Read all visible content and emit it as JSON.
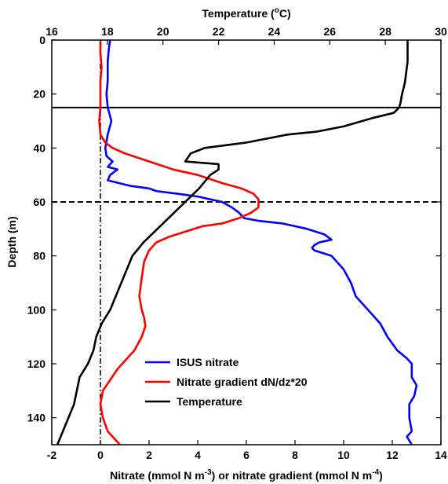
{
  "chart_data": {
    "type": "line",
    "title": "",
    "xlabel_bottom": {
      "pre": "Nitrate (mmol N m",
      "sup1": "-3",
      "mid": ") or nitrate gradient (mmol N m",
      "sup2": "-4",
      "post": ")"
    },
    "xlabel_top": {
      "pre": "Temperature (",
      "sup": "o",
      "post": "C)"
    },
    "ylabel": "Depth (m)",
    "bottom_axis": {
      "min": -2,
      "max": 14,
      "ticks": [
        -2,
        0,
        2,
        4,
        6,
        8,
        10,
        12,
        14
      ]
    },
    "top_axis": {
      "min": 16,
      "max": 30,
      "ticks": [
        16,
        18,
        20,
        22,
        24,
        26,
        28,
        30
      ]
    },
    "y_axis": {
      "min": 0,
      "max": 150,
      "inverted": true,
      "ticks": [
        0,
        20,
        40,
        60,
        80,
        100,
        120,
        140
      ]
    },
    "grid": false,
    "legend_position": "bottom-center",
    "reference_lines": [
      {
        "orientation": "horizontal",
        "depth": 25,
        "style": "solid",
        "color": "#000000"
      },
      {
        "orientation": "horizontal",
        "depth": 60,
        "style": "dashed",
        "color": "#000000"
      },
      {
        "orientation": "vertical",
        "x": 0,
        "style": "dashdot",
        "color": "#000000"
      }
    ],
    "series": [
      {
        "name": "ISUS nitrate",
        "axis": "bottom",
        "color": "#0000ff",
        "points": [
          [
            0.4,
            0
          ],
          [
            0.35,
            3
          ],
          [
            0.3,
            8
          ],
          [
            0.3,
            15
          ],
          [
            0.25,
            20
          ],
          [
            0.3,
            25
          ],
          [
            0.45,
            30
          ],
          [
            0.3,
            35
          ],
          [
            0.2,
            40
          ],
          [
            0.25,
            43
          ],
          [
            0.5,
            45
          ],
          [
            0.3,
            47
          ],
          [
            0.7,
            48
          ],
          [
            0.4,
            50
          ],
          [
            0.3,
            52
          ],
          [
            1.2,
            54
          ],
          [
            2.0,
            55
          ],
          [
            2.3,
            56
          ],
          [
            3.2,
            57
          ],
          [
            4.0,
            58
          ],
          [
            5.0,
            60
          ],
          [
            5.4,
            62
          ],
          [
            5.7,
            64
          ],
          [
            5.9,
            66
          ],
          [
            6.5,
            67
          ],
          [
            7.5,
            68
          ],
          [
            8.5,
            70
          ],
          [
            9.2,
            72
          ],
          [
            9.5,
            74
          ],
          [
            9.0,
            75
          ],
          [
            8.8,
            76
          ],
          [
            8.7,
            77
          ],
          [
            8.8,
            78
          ],
          [
            9.5,
            80
          ],
          [
            10.0,
            85
          ],
          [
            10.3,
            90
          ],
          [
            10.5,
            95
          ],
          [
            11.0,
            100
          ],
          [
            11.5,
            105
          ],
          [
            11.8,
            110
          ],
          [
            12.2,
            115
          ],
          [
            12.6,
            118
          ],
          [
            12.8,
            120
          ],
          [
            12.8,
            125
          ],
          [
            13.0,
            128
          ],
          [
            12.9,
            132
          ],
          [
            12.7,
            135
          ],
          [
            12.7,
            140
          ],
          [
            12.8,
            145
          ],
          [
            12.6,
            147
          ],
          [
            12.8,
            150
          ]
        ]
      },
      {
        "name": "Nitrate gradient dN/dz*20",
        "axis": "bottom",
        "color": "#ff0000",
        "points": [
          [
            0.0,
            0
          ],
          [
            0.0,
            5
          ],
          [
            0.05,
            10
          ],
          [
            0.0,
            15
          ],
          [
            0.0,
            25
          ],
          [
            -0.05,
            30
          ],
          [
            0.0,
            35
          ],
          [
            0.2,
            38
          ],
          [
            0.5,
            40
          ],
          [
            1.0,
            42
          ],
          [
            2.0,
            45
          ],
          [
            3.0,
            48
          ],
          [
            4.0,
            50
          ],
          [
            5.0,
            53
          ],
          [
            5.8,
            55
          ],
          [
            6.3,
            57
          ],
          [
            6.5,
            59
          ],
          [
            6.5,
            62
          ],
          [
            6.2,
            64
          ],
          [
            5.7,
            66
          ],
          [
            5.0,
            68
          ],
          [
            4.2,
            69
          ],
          [
            3.5,
            71
          ],
          [
            2.8,
            73
          ],
          [
            2.3,
            75
          ],
          [
            2.0,
            78
          ],
          [
            1.8,
            82
          ],
          [
            1.7,
            88
          ],
          [
            1.6,
            95
          ],
          [
            1.7,
            100
          ],
          [
            1.8,
            103
          ],
          [
            1.85,
            106
          ],
          [
            1.7,
            110
          ],
          [
            1.4,
            115
          ],
          [
            1.1,
            118
          ],
          [
            0.7,
            122
          ],
          [
            0.4,
            126
          ],
          [
            0.1,
            130
          ],
          [
            0.0,
            135
          ],
          [
            0.1,
            140
          ],
          [
            0.3,
            145
          ],
          [
            0.8,
            150
          ]
        ]
      },
      {
        "name": "Temperature",
        "axis": "top",
        "color": "#000000",
        "points": [
          [
            28.8,
            0
          ],
          [
            28.8,
            8
          ],
          [
            28.75,
            12
          ],
          [
            28.7,
            16
          ],
          [
            28.6,
            20
          ],
          [
            28.55,
            23
          ],
          [
            28.5,
            25
          ],
          [
            28.3,
            27
          ],
          [
            27.5,
            29
          ],
          [
            26.5,
            32
          ],
          [
            25.5,
            34
          ],
          [
            24.5,
            35
          ],
          [
            24.0,
            36
          ],
          [
            23.5,
            37
          ],
          [
            23.0,
            38
          ],
          [
            21.5,
            40
          ],
          [
            21.0,
            42
          ],
          [
            20.8,
            45
          ],
          [
            22.0,
            46
          ],
          [
            22.0,
            48
          ],
          [
            21.7,
            50
          ],
          [
            21.3,
            55
          ],
          [
            21.0,
            58
          ],
          [
            20.8,
            60
          ],
          [
            20.5,
            63
          ],
          [
            20.2,
            66
          ],
          [
            19.8,
            70
          ],
          [
            19.3,
            75
          ],
          [
            18.9,
            80
          ],
          [
            18.7,
            85
          ],
          [
            18.5,
            90
          ],
          [
            18.3,
            95
          ],
          [
            18.1,
            100
          ],
          [
            17.8,
            105
          ],
          [
            17.6,
            110
          ],
          [
            17.5,
            115
          ],
          [
            17.3,
            120
          ],
          [
            17.0,
            125
          ],
          [
            16.9,
            130
          ],
          [
            16.8,
            135
          ],
          [
            16.6,
            140
          ],
          [
            16.4,
            145
          ],
          [
            16.2,
            150
          ]
        ]
      }
    ]
  }
}
